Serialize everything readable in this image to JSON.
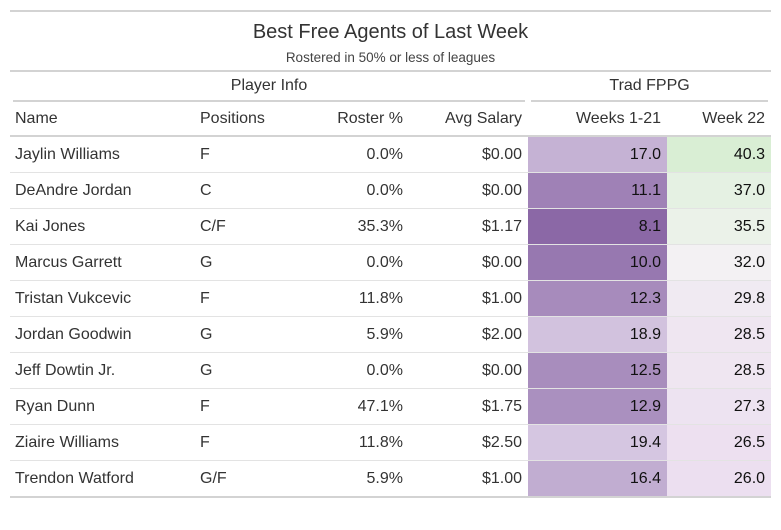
{
  "title": "Best Free Agents of Last Week",
  "subtitle": "Rostered in 50% or less of leagues",
  "spanners": {
    "player_info": "Player Info",
    "trad_fppg": "Trad FPPG"
  },
  "columns": [
    "Name",
    "Positions",
    "Roster %",
    "Avg Salary",
    "Weeks 1-21",
    "Week 22"
  ],
  "rows": [
    {
      "name": "Jaylin Williams",
      "pos": "F",
      "roster": "0.0%",
      "salary": "$0.00",
      "w121": "17.0",
      "w22": "40.3"
    },
    {
      "name": "DeAndre Jordan",
      "pos": "C",
      "roster": "0.0%",
      "salary": "$0.00",
      "w121": "11.1",
      "w22": "37.0"
    },
    {
      "name": "Kai Jones",
      "pos": "C/F",
      "roster": "35.3%",
      "salary": "$1.17",
      "w121": "8.1",
      "w22": "35.5"
    },
    {
      "name": "Marcus Garrett",
      "pos": "G",
      "roster": "0.0%",
      "salary": "$0.00",
      "w121": "10.0",
      "w22": "32.0"
    },
    {
      "name": "Tristan Vukcevic",
      "pos": "F",
      "roster": "11.8%",
      "salary": "$1.00",
      "w121": "12.3",
      "w22": "29.8"
    },
    {
      "name": "Jordan Goodwin",
      "pos": "G",
      "roster": "5.9%",
      "salary": "$2.00",
      "w121": "18.9",
      "w22": "28.5"
    },
    {
      "name": "Jeff Dowtin Jr.",
      "pos": "G",
      "roster": "0.0%",
      "salary": "$0.00",
      "w121": "12.5",
      "w22": "28.5"
    },
    {
      "name": "Ryan Dunn",
      "pos": "F",
      "roster": "47.1%",
      "salary": "$1.75",
      "w121": "12.9",
      "w22": "27.3"
    },
    {
      "name": "Ziaire Williams",
      "pos": "F",
      "roster": "11.8%",
      "salary": "$2.50",
      "w121": "19.4",
      "w22": "26.5"
    },
    {
      "name": "Trendon Watford",
      "pos": "G/F",
      "roster": "5.9%",
      "salary": "$1.00",
      "w121": "16.4",
      "w22": "26.0"
    }
  ],
  "colors": {
    "weeks_1_21_low": "#8b68a6",
    "weeks_1_21_high": "#d5c6e1",
    "week_22_low": "#ecdff0",
    "week_22_mid": "#f4f4f4",
    "week_22_high": "#d9eed4"
  }
}
